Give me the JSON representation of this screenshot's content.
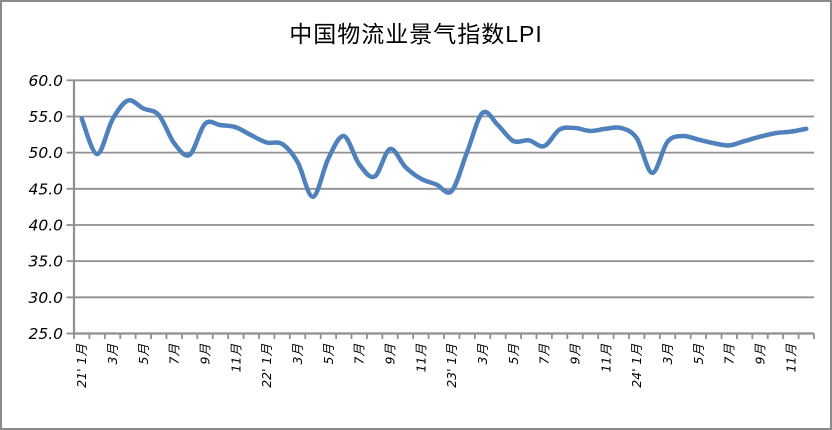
{
  "chart_data": {
    "type": "line",
    "title": "中国物流业景气指数LPI",
    "xlabel": "",
    "ylabel": "",
    "ylim": [
      25.0,
      60.0
    ],
    "ytick_step": 5.0,
    "ytick_labels": [
      "60.0",
      "55.0",
      "50.0",
      "45.0",
      "40.0",
      "35.0",
      "30.0",
      "25.0"
    ],
    "xtick_labels": [
      "21' 1月",
      "3月",
      "5月",
      "7月",
      "9月",
      "11月",
      "22' 1月",
      "3月",
      "5月",
      "7月",
      "9月",
      "11月",
      "23' 1月",
      "3月",
      "5月",
      "7月",
      "9月",
      "11月",
      "24' 1月",
      "3月",
      "5月",
      "7月",
      "9月",
      "11月"
    ],
    "grid": true,
    "legend_position": "none",
    "line_color": "#4F81BD",
    "grid_color": "#8f8f8f",
    "categories": [
      "2021-01",
      "2021-02",
      "2021-03",
      "2021-04",
      "2021-05",
      "2021-06",
      "2021-07",
      "2021-08",
      "2021-09",
      "2021-10",
      "2021-11",
      "2021-12",
      "2022-01",
      "2022-02",
      "2022-03",
      "2022-04",
      "2022-05",
      "2022-06",
      "2022-07",
      "2022-08",
      "2022-09",
      "2022-10",
      "2022-11",
      "2022-12",
      "2023-01",
      "2023-02",
      "2023-03",
      "2023-04",
      "2023-05",
      "2023-06",
      "2023-07",
      "2023-08",
      "2023-09",
      "2023-10",
      "2023-11",
      "2023-12",
      "2024-01",
      "2024-02",
      "2024-03",
      "2024-04",
      "2024-05",
      "2024-06",
      "2024-07",
      "2024-08",
      "2024-09",
      "2024-10",
      "2024-11",
      "2024-12"
    ],
    "series": [
      {
        "name": "LPI",
        "values": [
          54.7,
          49.8,
          54.6,
          57.2,
          56.1,
          55.2,
          51.3,
          49.7,
          54.0,
          53.8,
          53.5,
          52.4,
          51.4,
          51.2,
          48.7,
          43.9,
          49.2,
          52.3,
          48.4,
          46.7,
          50.5,
          48.0,
          46.4,
          45.6,
          44.7,
          50.1,
          55.5,
          53.8,
          51.6,
          51.7,
          50.9,
          53.2,
          53.4,
          53.0,
          53.3,
          53.4,
          52.0,
          47.2,
          51.5,
          52.3,
          51.8,
          51.3,
          51.0,
          51.6,
          52.2,
          52.7,
          52.9,
          53.3
        ]
      }
    ]
  }
}
